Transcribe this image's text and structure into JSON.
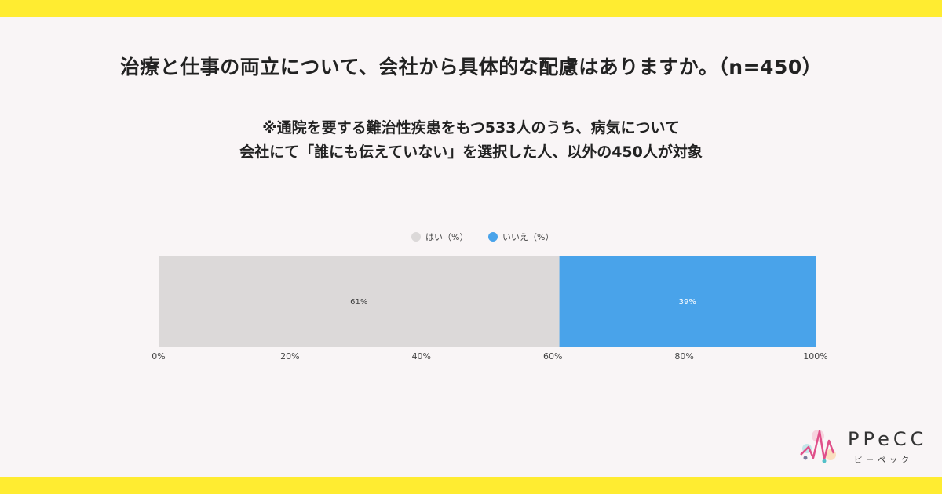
{
  "header": {
    "title": "治療と仕事の両立について、会社から具体的な配慮はありますか。（n=450）",
    "subtitle_line1": "※通院を要する難治性疾患をもつ533人のうち、病気について",
    "subtitle_line2": "会社にて「誰にも伝えていない」を選択した人、以外の450人が対象"
  },
  "chart_data": {
    "type": "bar",
    "orientation": "horizontal",
    "stacked": true,
    "categories": [
      ""
    ],
    "series": [
      {
        "name": "はい（%）",
        "values": [
          61
        ],
        "label": "61%",
        "color": "#dcd9d9"
      },
      {
        "name": "いいえ（%）",
        "values": [
          39
        ],
        "label": "39%",
        "color": "#49a3ea"
      }
    ],
    "xlim": [
      0,
      100
    ],
    "x_ticks": [
      "0%",
      "20%",
      "40%",
      "60%",
      "80%",
      "100%"
    ],
    "legend_position": "top",
    "grid": false
  },
  "logo": {
    "text": "PPeCC",
    "subtext": "ピーペック",
    "colors": [
      "#e0508a",
      "#f0a13a",
      "#52c0c8",
      "#7a7a9a"
    ]
  }
}
